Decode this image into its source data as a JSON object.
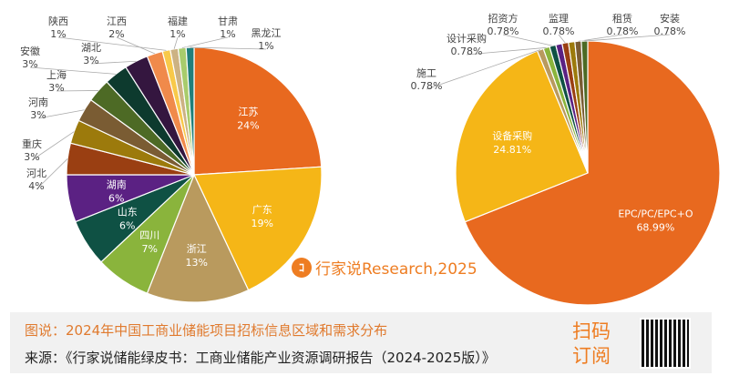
{
  "chart_data": [
    {
      "type": "pie",
      "start": "top",
      "direction": "clockwise",
      "slices": [
        {
          "label": "江苏",
          "value": 24,
          "display": "24%",
          "color": "#e8691f",
          "inside": true
        },
        {
          "label": "广东",
          "value": 19,
          "display": "19%",
          "color": "#f5b617",
          "inside": true
        },
        {
          "label": "浙江",
          "value": 13,
          "display": "13%",
          "color": "#b99a5e",
          "inside": true
        },
        {
          "label": "四川",
          "value": 7,
          "display": "7%",
          "color": "#8ab43c",
          "inside": true
        },
        {
          "label": "山东",
          "value": 6,
          "display": "6%",
          "color": "#0f5144",
          "inside": true
        },
        {
          "label": "湖南",
          "value": 6,
          "display": "6%",
          "color": "#5b2183",
          "inside": true
        },
        {
          "label": "河北",
          "value": 4,
          "display": "4%",
          "color": "#9a3f12"
        },
        {
          "label": "重庆",
          "value": 3,
          "display": "3%",
          "color": "#9c7a0c"
        },
        {
          "label": "河南",
          "value": 3,
          "display": "3%",
          "color": "#7a5c33"
        },
        {
          "label": "上海",
          "value": 3,
          "display": "3%",
          "color": "#4d6a25"
        },
        {
          "label": "安徽",
          "value": 3,
          "display": "3%",
          "color": "#0d3a2e"
        },
        {
          "label": "湖北",
          "value": 3,
          "display": "3%",
          "color": "#34163f"
        },
        {
          "label": "江西",
          "value": 2,
          "display": "2%",
          "color": "#f08a4b"
        },
        {
          "label": "陕西",
          "value": 1,
          "display": "1%",
          "color": "#f8c94a"
        },
        {
          "label": "福建",
          "value": 1,
          "display": "1%",
          "color": "#ccb283"
        },
        {
          "label": "甘肃",
          "value": 1,
          "display": "1%",
          "color": "#a8cc6c"
        },
        {
          "label": "黑龙江",
          "value": 1,
          "display": "1%",
          "color": "#1f7f7a"
        }
      ]
    },
    {
      "type": "pie",
      "start": "top",
      "direction": "clockwise",
      "slices": [
        {
          "label": "EPC/PC/EPC+O",
          "value": 68.99,
          "display": "68.99%",
          "color": "#e8691f",
          "inside": true
        },
        {
          "label": "设备采购",
          "value": 24.81,
          "display": "24.81%",
          "color": "#f5b617",
          "inside": true
        },
        {
          "label": "施工",
          "value": 0.78,
          "display": "0.78%",
          "color": "#b99a5e"
        },
        {
          "label": "设计采购",
          "value": 0.78,
          "display": "0.78%",
          "color": "#8ab43c"
        },
        {
          "label": "招资方",
          "value": 0.78,
          "display": "0.78%",
          "color": "#0f5144"
        },
        {
          "label": "",
          "value": 0.78,
          "display": "",
          "color": "#5b2183"
        },
        {
          "label": "监理",
          "value": 0.78,
          "display": "0.78%",
          "color": "#9a3f12"
        },
        {
          "label": "",
          "value": 0.78,
          "display": "",
          "color": "#9c7a0c"
        },
        {
          "label": "租赁",
          "value": 0.78,
          "display": "0.78%",
          "color": "#7a5c33"
        },
        {
          "label": "安装",
          "value": 0.78,
          "display": "0.78%",
          "color": "#4d6a25"
        }
      ]
    }
  ],
  "watermark": "行家说Research,2025",
  "footer": {
    "caption": "图说：2024年中国工商业储能项目招标信息区域和需求分布",
    "source": "来源：《行家说储能绿皮书：工商业储能产业资源调研报告（2024-2025版）》",
    "scan": "扫码订阅"
  }
}
